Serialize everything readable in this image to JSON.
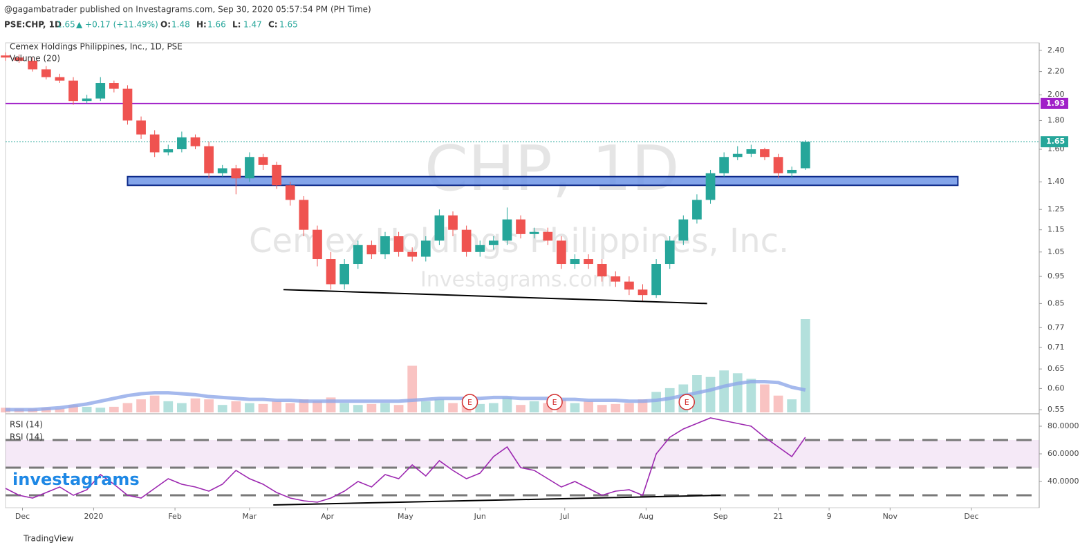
{
  "header": {
    "publisher": "@gagambatrader published on Investagrams.com, Sep 30, 2020 05:57:54 PM (PH Time)",
    "symbol": "PSE:CHP, 1D",
    "last": 1.65,
    "change": "▲ +0.17 (+11.49%)",
    "ohlc": [
      {
        "label": "O:",
        "value": 1.48
      },
      {
        "label": "H:",
        "value": 1.66
      },
      {
        "label": "L:",
        "value": 1.47
      },
      {
        "label": "C:",
        "value": 1.65
      }
    ]
  },
  "chart_data": {
    "type": "candlestick",
    "title": "Cemex Holdings Philippines, Inc., 1D, PSE",
    "log_scale": true,
    "up_color": "#26a69a",
    "down_color": "#ef5350",
    "watermark": [
      "CHP, 1D",
      "Cemex Holdings Philippines, Inc.",
      "Investagrams.com"
    ],
    "x": [
      0,
      4,
      8,
      12,
      16,
      20,
      24,
      28,
      32,
      36,
      40,
      44,
      48,
      52,
      56,
      60,
      64,
      68,
      72,
      76,
      80,
      84,
      88,
      92,
      96,
      100,
      104,
      108,
      112,
      116,
      120,
      124,
      128,
      132,
      136,
      140,
      144,
      148,
      152,
      156,
      160,
      164,
      168,
      172,
      176,
      180,
      184,
      188,
      192,
      196,
      200,
      204,
      208,
      212,
      216,
      220,
      224,
      228,
      232,
      236
    ],
    "open": [
      2.35,
      2.33,
      2.3,
      2.22,
      2.15,
      2.12,
      1.95,
      1.97,
      2.1,
      2.05,
      1.8,
      1.7,
      1.58,
      1.6,
      1.68,
      1.62,
      1.45,
      1.48,
      1.42,
      1.55,
      1.5,
      1.38,
      1.3,
      1.15,
      1.02,
      0.92,
      1.0,
      1.08,
      1.04,
      1.12,
      1.05,
      1.03,
      1.1,
      1.22,
      1.15,
      1.05,
      1.08,
      1.1,
      1.2,
      1.13,
      1.14,
      1.1,
      1.0,
      1.02,
      1.0,
      0.95,
      0.93,
      0.9,
      0.88,
      1.0,
      1.1,
      1.2,
      1.3,
      1.45,
      1.55,
      1.57,
      1.6,
      1.55,
      1.45,
      1.48
    ],
    "high": [
      2.38,
      2.36,
      2.33,
      2.25,
      2.18,
      2.15,
      2.0,
      2.15,
      2.12,
      2.08,
      1.83,
      1.73,
      1.63,
      1.72,
      1.7,
      1.65,
      1.5,
      1.5,
      1.58,
      1.57,
      1.52,
      1.4,
      1.32,
      1.17,
      1.05,
      1.02,
      1.1,
      1.1,
      1.14,
      1.14,
      1.07,
      1.12,
      1.25,
      1.24,
      1.17,
      1.1,
      1.12,
      1.26,
      1.22,
      1.16,
      1.16,
      1.12,
      1.04,
      1.04,
      1.02,
      0.97,
      0.95,
      0.92,
      1.02,
      1.12,
      1.22,
      1.33,
      1.47,
      1.58,
      1.62,
      1.63,
      1.61,
      1.57,
      1.49,
      1.66
    ],
    "low": [
      2.3,
      2.28,
      2.2,
      2.13,
      2.1,
      1.92,
      1.93,
      1.95,
      2.02,
      1.77,
      1.67,
      1.55,
      1.56,
      1.58,
      1.6,
      1.42,
      1.43,
      1.33,
      1.4,
      1.47,
      1.36,
      1.27,
      1.12,
      0.99,
      0.9,
      0.9,
      0.98,
      1.02,
      1.02,
      1.03,
      1.01,
      1.01,
      1.08,
      1.12,
      1.03,
      1.03,
      1.06,
      1.08,
      1.11,
      1.11,
      1.08,
      0.98,
      0.98,
      0.98,
      0.93,
      0.91,
      0.88,
      0.86,
      0.87,
      0.98,
      1.08,
      1.18,
      1.28,
      1.43,
      1.53,
      1.55,
      1.53,
      1.42,
      1.42,
      1.47
    ],
    "close": [
      2.33,
      2.3,
      2.22,
      2.15,
      2.12,
      1.95,
      1.97,
      2.1,
      2.05,
      1.8,
      1.7,
      1.58,
      1.6,
      1.68,
      1.62,
      1.45,
      1.48,
      1.42,
      1.55,
      1.5,
      1.38,
      1.3,
      1.15,
      1.02,
      0.92,
      1.0,
      1.08,
      1.04,
      1.12,
      1.05,
      1.03,
      1.1,
      1.22,
      1.15,
      1.05,
      1.08,
      1.1,
      1.2,
      1.13,
      1.14,
      1.1,
      1.0,
      1.02,
      1.0,
      0.95,
      0.93,
      0.9,
      0.88,
      1.0,
      1.1,
      1.2,
      1.3,
      1.45,
      1.55,
      1.57,
      1.6,
      1.55,
      1.45,
      1.47,
      1.65
    ],
    "xlim": [
      0,
      305
    ],
    "xticks": [
      {
        "value": 5,
        "label": "Dec"
      },
      {
        "value": 26,
        "label": "2020"
      },
      {
        "value": 50,
        "label": "Feb"
      },
      {
        "value": 72,
        "label": "Mar"
      },
      {
        "value": 95,
        "label": "Apr"
      },
      {
        "value": 118,
        "label": "May"
      },
      {
        "value": 140,
        "label": "Jun"
      },
      {
        "value": 165,
        "label": "Jul"
      },
      {
        "value": 189,
        "label": "Aug"
      },
      {
        "value": 211,
        "label": "Sep"
      },
      {
        "value": 228,
        "label": "21"
      },
      {
        "value": 243,
        "label": "9"
      },
      {
        "value": 261,
        "label": "Nov"
      },
      {
        "value": 285,
        "label": "Dec"
      }
    ],
    "ylim": [
      0.544,
      2.475
    ],
    "yticks": [
      {
        "value": 2.4,
        "label": "2.40"
      },
      {
        "value": 2.2,
        "label": "2.20"
      },
      {
        "value": 2,
        "label": "2.00"
      },
      {
        "value": 1.8,
        "label": "1.80"
      },
      {
        "value": 1.6,
        "label": "1.60"
      },
      {
        "value": 1.4,
        "label": "1.40"
      },
      1.25,
      1.15,
      1.05,
      0.95,
      0.85,
      0.77,
      0.71,
      0.65,
      {
        "value": 0.6,
        "label": "0.60"
      },
      0.55
    ],
    "hline": {
      "value": 1.93,
      "label": "1.93",
      "color": "#a020c8"
    },
    "last_price": {
      "value": 1.65,
      "label": "1.65",
      "color": "#26a69a"
    },
    "zone": {
      "x": [
        36,
        281
      ],
      "y": [
        1.38,
        1.43
      ],
      "color": "#6f95e6"
    },
    "trendline": {
      "x": [
        82,
        207
      ],
      "y": [
        0.9,
        0.85
      ]
    },
    "events": [
      {
        "x": 137,
        "label": "E"
      },
      {
        "x": 162,
        "label": "E"
      },
      {
        "x": 201,
        "label": "E"
      }
    ],
    "volume": {
      "name": "Volume (20)",
      "values": [
        5,
        4,
        4,
        5,
        4,
        8,
        6,
        5,
        6,
        10,
        14,
        18,
        12,
        10,
        15,
        14,
        8,
        12,
        10,
        9,
        12,
        10,
        14,
        12,
        16,
        10,
        8,
        9,
        10,
        8,
        50,
        12,
        14,
        10,
        12,
        9,
        10,
        16,
        8,
        12,
        10,
        14,
        10,
        12,
        8,
        9,
        10,
        14,
        22,
        26,
        30,
        40,
        38,
        45,
        42,
        36,
        30,
        18,
        14,
        100
      ],
      "ma": [
        3,
        3,
        3,
        4,
        5,
        7,
        9,
        12,
        15,
        18,
        20,
        21,
        21,
        20,
        19,
        17,
        16,
        15,
        14,
        14,
        13,
        13,
        12,
        12,
        12,
        12,
        12,
        12,
        12,
        12,
        13,
        14,
        15,
        15,
        15,
        15,
        16,
        16,
        15,
        15,
        15,
        14,
        14,
        13,
        13,
        13,
        12,
        12,
        13,
        15,
        18,
        21,
        24,
        28,
        31,
        33,
        33,
        32,
        27,
        24
      ],
      "color": "#8fa8e8"
    },
    "rsi": {
      "legend": [
        "RSI (14)",
        "RSI (14)"
      ],
      "values": [
        35,
        30,
        28,
        32,
        36,
        30,
        34,
        45,
        38,
        30,
        28,
        35,
        42,
        38,
        36,
        33,
        38,
        48,
        42,
        38,
        32,
        28,
        26,
        25,
        28,
        33,
        40,
        36,
        45,
        42,
        52,
        44,
        55,
        48,
        42,
        46,
        58,
        65,
        50,
        48,
        42,
        36,
        40,
        35,
        30,
        33,
        34,
        30,
        60,
        72,
        78,
        82,
        86,
        84,
        82,
        80,
        72,
        65,
        58,
        72
      ],
      "ylim": [
        21,
        88.5
      ],
      "yticks": [
        {
          "value": 80,
          "label": "80.0000"
        },
        {
          "value": 60,
          "label": "60.0000"
        },
        {
          "value": 40,
          "label": "40.0000"
        }
      ],
      "bands": [
        70,
        50,
        30
      ],
      "color": "#9c27b0",
      "trendline": {
        "x": [
          79,
          211
        ],
        "y": [
          23,
          30
        ]
      }
    }
  },
  "footer": {
    "logo": "investagrams",
    "brand": "TradingView"
  }
}
